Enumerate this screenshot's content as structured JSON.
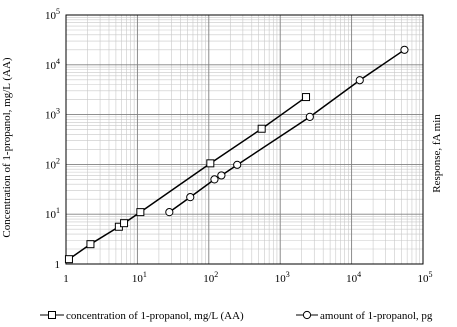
{
  "chart_data": {
    "type": "line",
    "x_scale": "log",
    "y_scale": "log",
    "xlim": [
      1,
      100000
    ],
    "ylim": [
      1,
      100000
    ],
    "grid": true,
    "legend_position": "bottom",
    "xlabel": "",
    "ylabel_left": "Concentration of 1-propanol, mg/L (AA)",
    "ylabel_right": "Response, fA min",
    "x_ticks": [
      {
        "value": 1,
        "base": "1",
        "exp": ""
      },
      {
        "value": 10,
        "base": "10",
        "exp": "1"
      },
      {
        "value": 100,
        "base": "10",
        "exp": "2"
      },
      {
        "value": 1000,
        "base": "10",
        "exp": "3"
      },
      {
        "value": 10000,
        "base": "10",
        "exp": "4"
      },
      {
        "value": 100000,
        "base": "10",
        "exp": "5"
      }
    ],
    "y_ticks": [
      {
        "value": 1,
        "base": "1",
        "exp": ""
      },
      {
        "value": 10,
        "base": "10",
        "exp": "1"
      },
      {
        "value": 100,
        "base": "10",
        "exp": "2"
      },
      {
        "value": 1000,
        "base": "10",
        "exp": "3"
      },
      {
        "value": 10000,
        "base": "10",
        "exp": "4"
      },
      {
        "value": 100000,
        "base": "10",
        "exp": "5"
      }
    ],
    "series": [
      {
        "name": "concentration of 1-propanol, mg/L (AA)",
        "marker": "square",
        "color": "#000000",
        "x": [
          1.1,
          2.2,
          5.5,
          6.5,
          11,
          105,
          550,
          2300
        ],
        "y": [
          1.25,
          2.5,
          5.6,
          6.6,
          11,
          105,
          520,
          2250
        ]
      },
      {
        "name": "amount of 1-propanol, pg",
        "marker": "circle",
        "color": "#000000",
        "x": [
          28,
          55,
          120,
          150,
          250,
          2600,
          13000,
          55000
        ],
        "y": [
          11,
          22,
          50,
          60,
          98,
          900,
          4900,
          20000
        ]
      }
    ]
  }
}
